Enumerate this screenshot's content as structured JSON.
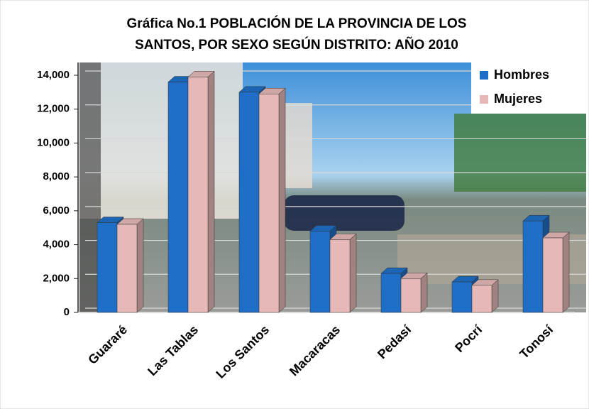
{
  "chart_data": {
    "type": "bar",
    "title": [
      "Gráfica No.1 POBLACIÓN DE LA PROVINCIA DE LOS",
      "SANTOS, POR SEXO SEGÚN DISTRITO: AÑO 2010"
    ],
    "categories": [
      "Guararé",
      "Las Tablas",
      "Los Santos",
      "Macaracas",
      "Pedasí",
      "Pocrí",
      "Tonosí"
    ],
    "series": [
      {
        "name": "Hombres",
        "color": "#1f6fc8",
        "values": [
          5300,
          13600,
          13000,
          4800,
          2300,
          1800,
          5400
        ]
      },
      {
        "name": "Mujeres",
        "color": "#e6b9b8",
        "values": [
          5200,
          13900,
          12900,
          4300,
          2000,
          1600,
          4400
        ]
      }
    ],
    "ylim": [
      0,
      14000
    ],
    "yticks": [
      0,
      {
        "value": 2000,
        "label": "2,000"
      },
      {
        "value": 4000,
        "label": "4,000"
      },
      {
        "value": 6000,
        "label": "6,000"
      },
      {
        "value": 8000,
        "label": "8,000"
      },
      {
        "value": 10000,
        "label": "10,000"
      },
      {
        "value": 12000,
        "label": "12,000"
      },
      {
        "value": 14000,
        "label": "14,000"
      }
    ],
    "grid": true,
    "legend": "top-right"
  }
}
